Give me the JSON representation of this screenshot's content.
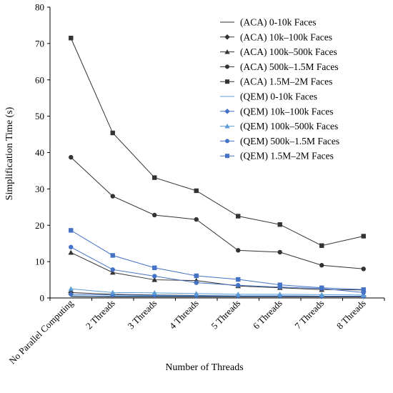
{
  "chart_data": {
    "type": "line",
    "title": "",
    "xlabel": "Number of Threads",
    "ylabel": "Simplification Time (s)",
    "ylim": [
      0,
      80
    ],
    "yticks": [
      0,
      10,
      20,
      30,
      40,
      50,
      60,
      70,
      80
    ],
    "grid": false,
    "legend_position": "top-right",
    "categories": [
      "No Parallel Computing",
      "2 Threads",
      "3 Threads",
      "4 Threads",
      "5 Threads",
      "6 Threads",
      "7 Threads",
      "8 Threads"
    ],
    "series": [
      {
        "name": "(ACA) 0-10k Faces",
        "color": "#333333",
        "marker": "none",
        "values": [
          0.4,
          0.3,
          0.3,
          0.3,
          0.3,
          0.3,
          0.3,
          0.3
        ]
      },
      {
        "name": "(ACA) 10k–100k Faces",
        "color": "#333333",
        "marker": "diamond",
        "values": [
          1.5,
          1.0,
          0.8,
          0.7,
          0.6,
          0.6,
          0.5,
          0.5
        ]
      },
      {
        "name": "(ACA) 100k–500k Faces",
        "color": "#333333",
        "marker": "triangle",
        "values": [
          12.5,
          7.0,
          5.0,
          4.8,
          3.3,
          2.8,
          2.3,
          2.2
        ]
      },
      {
        "name": "(ACA) 500k–1.5M Faces",
        "color": "#333333",
        "marker": "circle",
        "values": [
          38.7,
          28.0,
          22.8,
          21.6,
          13.1,
          12.6,
          9.0,
          8.0
        ]
      },
      {
        "name": "(ACA) 1.5M–2M Faces",
        "color": "#333333",
        "marker": "square",
        "values": [
          71.5,
          45.4,
          33.1,
          29.5,
          22.5,
          20.2,
          14.4,
          17.0
        ]
      },
      {
        "name": "(QEM) 0-10k Faces",
        "color": "#5b9bd5",
        "marker": "none",
        "values": [
          0.6,
          0.5,
          0.5,
          0.5,
          0.5,
          0.5,
          0.5,
          0.5
        ]
      },
      {
        "name": "(QEM) 10k–100k Faces",
        "color": "#4472c4",
        "marker": "diamond",
        "values": [
          1.0,
          0.8,
          0.7,
          0.6,
          0.6,
          0.6,
          0.5,
          0.5
        ]
      },
      {
        "name": "(QEM) 100k–500k Faces",
        "color": "#5b9bd5",
        "marker": "triangle",
        "values": [
          2.5,
          1.5,
          1.4,
          1.2,
          1.0,
          1.0,
          0.9,
          0.8
        ]
      },
      {
        "name": "(QEM) 500k–1.5M Faces",
        "color": "#4472c4",
        "marker": "circle",
        "values": [
          14.0,
          7.8,
          6.0,
          4.2,
          3.5,
          3.0,
          2.6,
          1.5
        ]
      },
      {
        "name": "(QEM) 1.5M–2M Faces",
        "color": "#4472c4",
        "marker": "square",
        "values": [
          18.6,
          11.7,
          8.3,
          6.1,
          5.1,
          3.6,
          2.8,
          2.3
        ]
      }
    ]
  }
}
